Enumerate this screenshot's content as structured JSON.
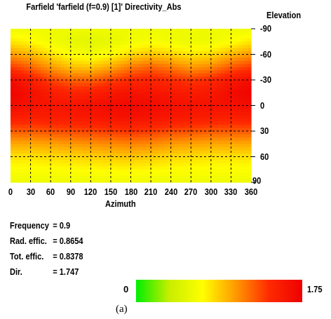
{
  "chart_data": {
    "type": "heatmap",
    "title": "Farfield 'farfield (f=0.9) [1]' Directivity_Abs",
    "xlabel": "Azimuth",
    "ylabel": "Elevation",
    "xlim": [
      0,
      360
    ],
    "ylim": [
      -90,
      90
    ],
    "x_ticks": [
      "0",
      "30",
      "60",
      "90",
      "120",
      "150",
      "180",
      "210",
      "240",
      "270",
      "300",
      "330",
      "360"
    ],
    "y_ticks": [
      "-90",
      "-60",
      "-30",
      "0",
      "30",
      "60",
      "90"
    ],
    "x": [
      0,
      30,
      60,
      90,
      120,
      150,
      180,
      210,
      240,
      270,
      300,
      330,
      360
    ],
    "y": [
      -90,
      -75,
      -60,
      -45,
      -30,
      -15,
      0,
      15,
      30,
      45,
      60,
      75,
      90
    ],
    "z": [
      [
        0.6,
        0.6,
        0.6,
        0.6,
        0.6,
        0.6,
        0.6,
        0.6,
        0.6,
        0.6,
        0.6,
        0.6,
        0.6
      ],
      [
        0.78,
        0.72,
        0.62,
        0.55,
        0.52,
        0.55,
        0.62,
        0.66,
        0.62,
        0.58,
        0.6,
        0.68,
        0.78
      ],
      [
        1.05,
        0.95,
        0.8,
        0.68,
        0.62,
        0.7,
        0.82,
        0.9,
        0.85,
        0.78,
        0.82,
        0.95,
        1.05
      ],
      [
        1.35,
        1.22,
        1.05,
        0.92,
        0.9,
        1.0,
        1.15,
        1.22,
        1.15,
        1.05,
        1.1,
        1.25,
        1.35
      ],
      [
        1.65,
        1.5,
        1.32,
        1.22,
        1.22,
        1.32,
        1.42,
        1.45,
        1.4,
        1.35,
        1.42,
        1.55,
        1.65
      ],
      [
        1.72,
        1.62,
        1.52,
        1.45,
        1.48,
        1.55,
        1.6,
        1.58,
        1.55,
        1.52,
        1.55,
        1.65,
        1.72
      ],
      [
        1.65,
        1.6,
        1.58,
        1.58,
        1.62,
        1.66,
        1.68,
        1.66,
        1.62,
        1.6,
        1.6,
        1.62,
        1.65
      ],
      [
        1.5,
        1.48,
        1.5,
        1.52,
        1.55,
        1.58,
        1.6,
        1.58,
        1.55,
        1.52,
        1.5,
        1.48,
        1.5
      ],
      [
        1.25,
        1.25,
        1.28,
        1.3,
        1.32,
        1.35,
        1.38,
        1.35,
        1.3,
        1.28,
        1.25,
        1.25,
        1.25
      ],
      [
        1.0,
        1.0,
        1.02,
        1.05,
        1.08,
        1.1,
        1.12,
        1.1,
        1.05,
        1.02,
        1.0,
        1.0,
        1.0
      ],
      [
        0.8,
        0.8,
        0.82,
        0.84,
        0.86,
        0.88,
        0.9,
        0.88,
        0.84,
        0.82,
        0.8,
        0.8,
        0.8
      ],
      [
        0.68,
        0.68,
        0.69,
        0.7,
        0.71,
        0.72,
        0.73,
        0.72,
        0.7,
        0.69,
        0.68,
        0.68,
        0.68
      ],
      [
        0.6,
        0.6,
        0.6,
        0.6,
        0.6,
        0.6,
        0.6,
        0.6,
        0.6,
        0.6,
        0.6,
        0.6,
        0.6
      ]
    ],
    "zlim": [
      0,
      1.75
    ],
    "colorbar": {
      "min_label": "0",
      "max_label": "1.75",
      "colors": [
        "#00ee00",
        "#c8ee00",
        "#ffff00",
        "#ff9900",
        "#ff2a00",
        "#ee0000"
      ]
    },
    "grid": true,
    "grid_style": "dashed black"
  },
  "info": [
    {
      "label": "Frequency",
      "value": "= 0.9"
    },
    {
      "label": "Rad. effic.",
      "value": "= 0.8654"
    },
    {
      "label": "Tot. effic.",
      "value": "= 0.8378"
    },
    {
      "label": "Dir.",
      "value": "= 1.747"
    }
  ],
  "caption": "(a)"
}
